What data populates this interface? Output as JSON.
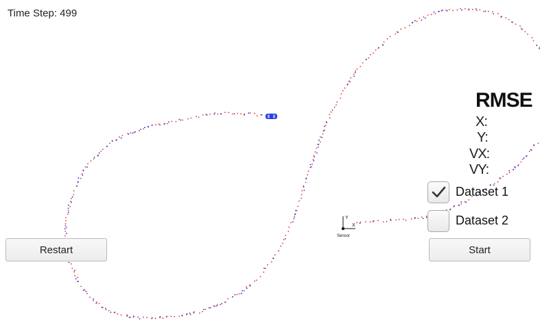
{
  "header": {
    "time_step": "Time Step: 499"
  },
  "rmse": {
    "title": "RMSE",
    "labels": [
      "X:",
      "Y:",
      "VX:",
      "VY:"
    ]
  },
  "datasets": [
    {
      "label": "Dataset 1",
      "checked": true
    },
    {
      "label": "Dataset 2",
      "checked": false
    }
  ],
  "buttons": {
    "restart": "Restart",
    "start": "Start"
  },
  "sensor": {
    "label": "Sensor",
    "x_axis": "X",
    "y_axis": "Y"
  },
  "colors": {
    "measurement_red": "#e0303a",
    "estimate_blue": "#2828d8",
    "car_blue": "#2b3fe0"
  }
}
